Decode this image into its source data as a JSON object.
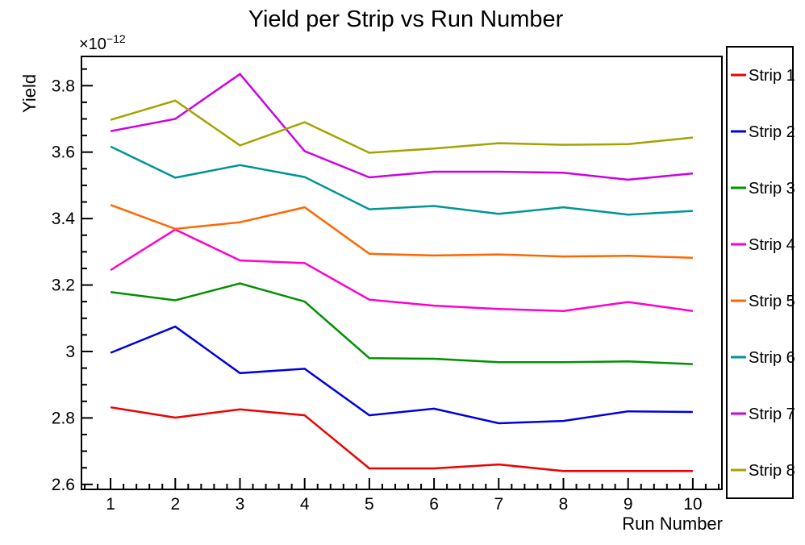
{
  "chart_data": {
    "type": "line",
    "title": "Yield per Strip vs Run Number",
    "xlabel": "Run Number",
    "ylabel": "Yield",
    "y_multiplier": {
      "base": "×10",
      "exponent": "−12"
    },
    "grid": false,
    "legend_position": "right",
    "xlim": [
      0.55,
      10.45
    ],
    "ylim": [
      2.585,
      3.888
    ],
    "x_major_ticks": [
      1,
      2,
      3,
      4,
      5,
      6,
      7,
      8,
      9,
      10
    ],
    "x_tick_labels": [
      "1",
      "2",
      "3",
      "4",
      "5",
      "6",
      "7",
      "8",
      "9",
      "10"
    ],
    "x_minor_step": 0.2,
    "y_major_ticks": [
      2.6,
      2.8,
      3.0,
      3.2,
      3.4,
      3.6,
      3.8
    ],
    "y_tick_labels": [
      "2.6",
      "2.8",
      "3",
      "3.2",
      "3.4",
      "3.6",
      "3.8"
    ],
    "y_minor_step": 0.05,
    "values_scale": "1e-12",
    "x": [
      1,
      2,
      3,
      4,
      5,
      6,
      7,
      8,
      9,
      10
    ],
    "series": [
      {
        "name": "Strip 1",
        "color": "#ee0000",
        "values": [
          2.832,
          2.801,
          2.826,
          2.808,
          2.648,
          2.648,
          2.66,
          2.64,
          2.64,
          2.64
        ]
      },
      {
        "name": "Strip 2",
        "color": "#0000dd",
        "values": [
          2.996,
          3.075,
          2.935,
          2.948,
          2.808,
          2.828,
          2.784,
          2.791,
          2.82,
          2.818
        ]
      },
      {
        "name": "Strip 3",
        "color": "#009000",
        "values": [
          3.179,
          3.154,
          3.205,
          3.15,
          2.98,
          2.978,
          2.968,
          2.968,
          2.97,
          2.962
        ]
      },
      {
        "name": "Strip 4",
        "color": "#ff00cc",
        "values": [
          3.245,
          3.367,
          3.274,
          3.266,
          3.156,
          3.138,
          3.128,
          3.122,
          3.149,
          3.122
        ]
      },
      {
        "name": "Strip 5",
        "color": "#ff6600",
        "values": [
          3.441,
          3.369,
          3.389,
          3.434,
          3.294,
          3.289,
          3.292,
          3.286,
          3.288,
          3.282
        ]
      },
      {
        "name": "Strip 6",
        "color": "#009595",
        "values": [
          3.617,
          3.523,
          3.561,
          3.525,
          3.428,
          3.438,
          3.414,
          3.434,
          3.412,
          3.423
        ]
      },
      {
        "name": "Strip 7",
        "color": "#cc00e6",
        "values": [
          3.663,
          3.7,
          3.835,
          3.603,
          3.524,
          3.541,
          3.541,
          3.538,
          3.517,
          3.536
        ]
      },
      {
        "name": "Strip 8",
        "color": "#a3a300",
        "values": [
          3.697,
          3.755,
          3.62,
          3.69,
          3.598,
          3.611,
          3.627,
          3.622,
          3.624,
          3.644
        ]
      }
    ]
  }
}
